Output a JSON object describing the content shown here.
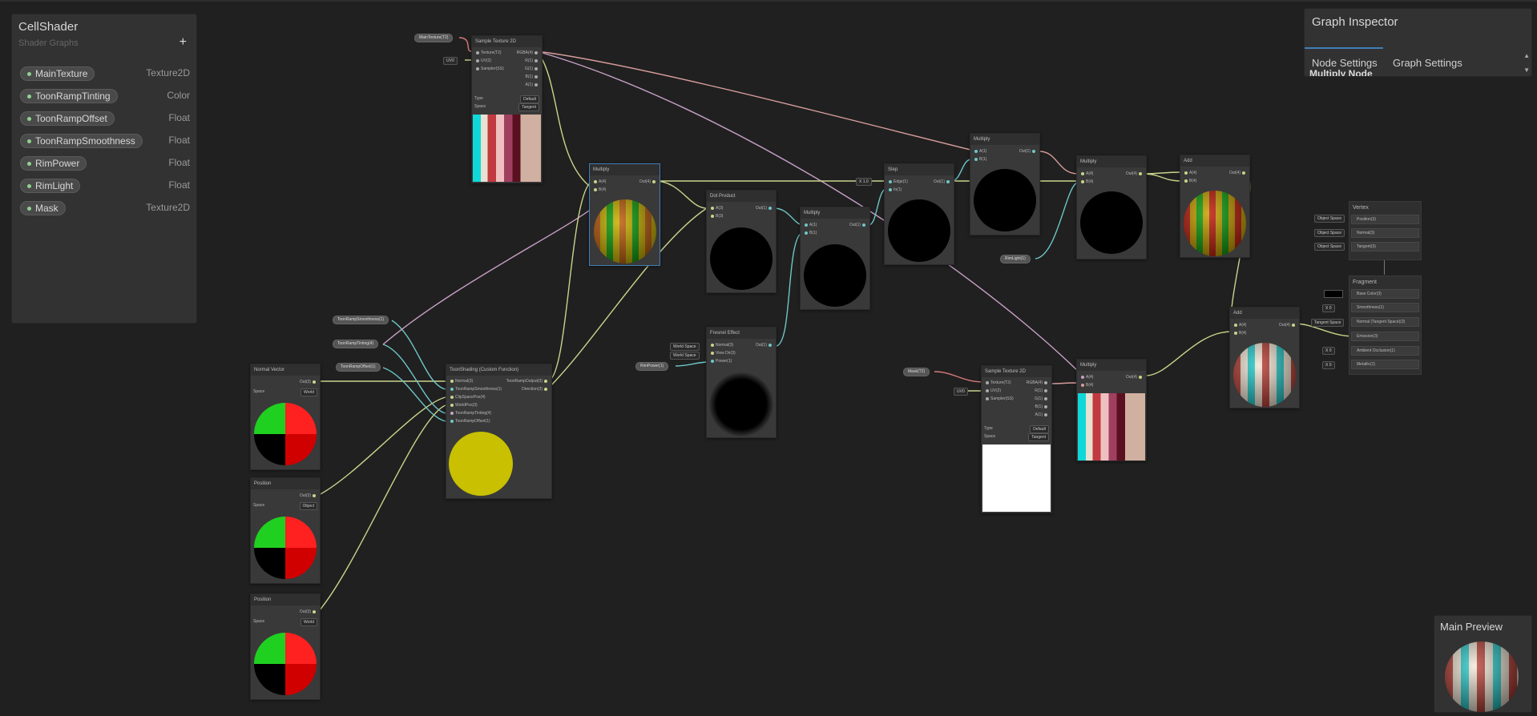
{
  "blackboard": {
    "title": "CellShader",
    "subtitle": "Shader Graphs",
    "add_label": "+",
    "properties": [
      {
        "name": "MainTexture",
        "type": "Texture2D"
      },
      {
        "name": "ToonRampTinting",
        "type": "Color"
      },
      {
        "name": "ToonRampOffset",
        "type": "Float"
      },
      {
        "name": "ToonRampSmoothness",
        "type": "Float"
      },
      {
        "name": "RimPower",
        "type": "Float"
      },
      {
        "name": "RimLight",
        "type": "Float"
      },
      {
        "name": "Mask",
        "type": "Texture2D"
      }
    ]
  },
  "inspector": {
    "title": "Graph Inspector",
    "tab_node": "Node Settings",
    "tab_graph": "Graph Settings",
    "section": "Multiply Node"
  },
  "main_preview": {
    "title": "Main Preview"
  },
  "chips": {
    "main_texture": "MainTexture(T2)",
    "uv0": "UV0",
    "smoothness": "ToonRampSmoothness(1)",
    "tinting": "ToonRampTinting(4)",
    "offset": "ToonRampOffset(1)",
    "rimpower": "RimPower(1)",
    "rimlight": "RimLight(1)",
    "mask": "Mask(T2)",
    "uv0b": "UV0",
    "step_val": "X 1.0"
  },
  "nodes": {
    "sample1": {
      "title": "Sample Texture 2D",
      "in1": "Texture(T2)",
      "in2": "UV(2)",
      "in3": "Sampler(SS)",
      "out1": "RGBA(4)",
      "out2": "R(1)",
      "out3": "G(1)",
      "out4": "B(1)",
      "out5": "A(1)",
      "type_label": "Type",
      "type_val": "Default",
      "space_label": "Space",
      "space_val": "Tangent"
    },
    "normal_vector": {
      "title": "Normal Vector",
      "out": "Out(3)",
      "space_label": "Space",
      "space_val": "World"
    },
    "position1": {
      "title": "Position",
      "out": "Out(3)",
      "space_label": "Space",
      "space_val": "Object"
    },
    "position2": {
      "title": "Position",
      "out": "Out(3)",
      "space_label": "Space",
      "space_val": "World"
    },
    "toon": {
      "title": "ToonShading (Custom Function)",
      "in1": "Normal(3)",
      "in2": "ToonRampSmoothness(1)",
      "in3": "ClipSpacePos(4)",
      "in4": "WorldPos(3)",
      "in5": "ToonRampTinting(4)",
      "in6": "ToonRampOffset(1)",
      "out1": "ToonRampOutput(3)",
      "out2": "Direction(3)"
    },
    "multiply1": {
      "title": "Multiply",
      "in1": "A(4)",
      "in2": "B(4)",
      "out": "Out(4)"
    },
    "dot": {
      "title": "Dot Product",
      "in1": "A(3)",
      "in2": "B(3)",
      "out": "Out(1)"
    },
    "fresnel": {
      "title": "Fresnel Effect",
      "in1": "Normal(3)",
      "in2": "View Dir(3)",
      "in3": "Power(1)",
      "out": "Out(1)",
      "ws1": "World Space",
      "ws2": "World Space"
    },
    "multiply2": {
      "title": "Multiply",
      "in1": "A(1)",
      "in2": "B(1)",
      "out": "Out(1)"
    },
    "step": {
      "title": "Step",
      "in1": "Edge(1)",
      "in2": "In(1)",
      "out": "Out(1)"
    },
    "multiply3": {
      "title": "Multiply",
      "in1": "A(1)",
      "in2": "B(1)",
      "out": "Out(1)"
    },
    "multiply4": {
      "title": "Multiply",
      "in1": "A(4)",
      "in2": "B(4)",
      "out": "Out(4)"
    },
    "add1": {
      "title": "Add",
      "in1": "A(4)",
      "in2": "B(4)",
      "out": "Out(4)"
    },
    "sample2": {
      "title": "Sample Texture 2D",
      "in1": "Texture(T2)",
      "in2": "UV(2)",
      "in3": "Sampler(SS)",
      "out1": "RGBA(4)",
      "out2": "R(1)",
      "out3": "G(1)",
      "out4": "B(1)",
      "out5": "A(1)",
      "type_label": "Type",
      "type_val": "Default",
      "space_label": "Space",
      "space_val": "Tangent"
    },
    "multiply5": {
      "title": "Multiply",
      "in1": "A(4)",
      "in2": "B(4)",
      "out": "Out(4)"
    },
    "add2": {
      "title": "Add",
      "in1": "A(4)",
      "in2": "B(4)",
      "out": "Out(4)"
    }
  },
  "vertex": {
    "title": "Vertex",
    "slots": [
      "Position(3)",
      "Normal(3)",
      "Tangent(3)"
    ],
    "ctls": [
      "Object Space",
      "Object Space",
      "Object Space"
    ]
  },
  "fragment": {
    "title": "Fragment",
    "slots": [
      "Base Color(3)",
      "Smoothness(1)",
      "Normal (Tangent Space)(3)",
      "Emission(3)",
      "Ambient Occlusion(1)",
      "Metallic(1)"
    ],
    "ctls": [
      "",
      "X 0",
      "Tangent Space",
      "",
      "X 0",
      "X 0"
    ]
  },
  "colors": {
    "accent": "#3f7fb5",
    "wire_vec": "#c9d48a",
    "wire_float": "#6fc6c6",
    "wire_tex": "#d79c9c",
    "wire_mat": "#c8a0c8"
  }
}
